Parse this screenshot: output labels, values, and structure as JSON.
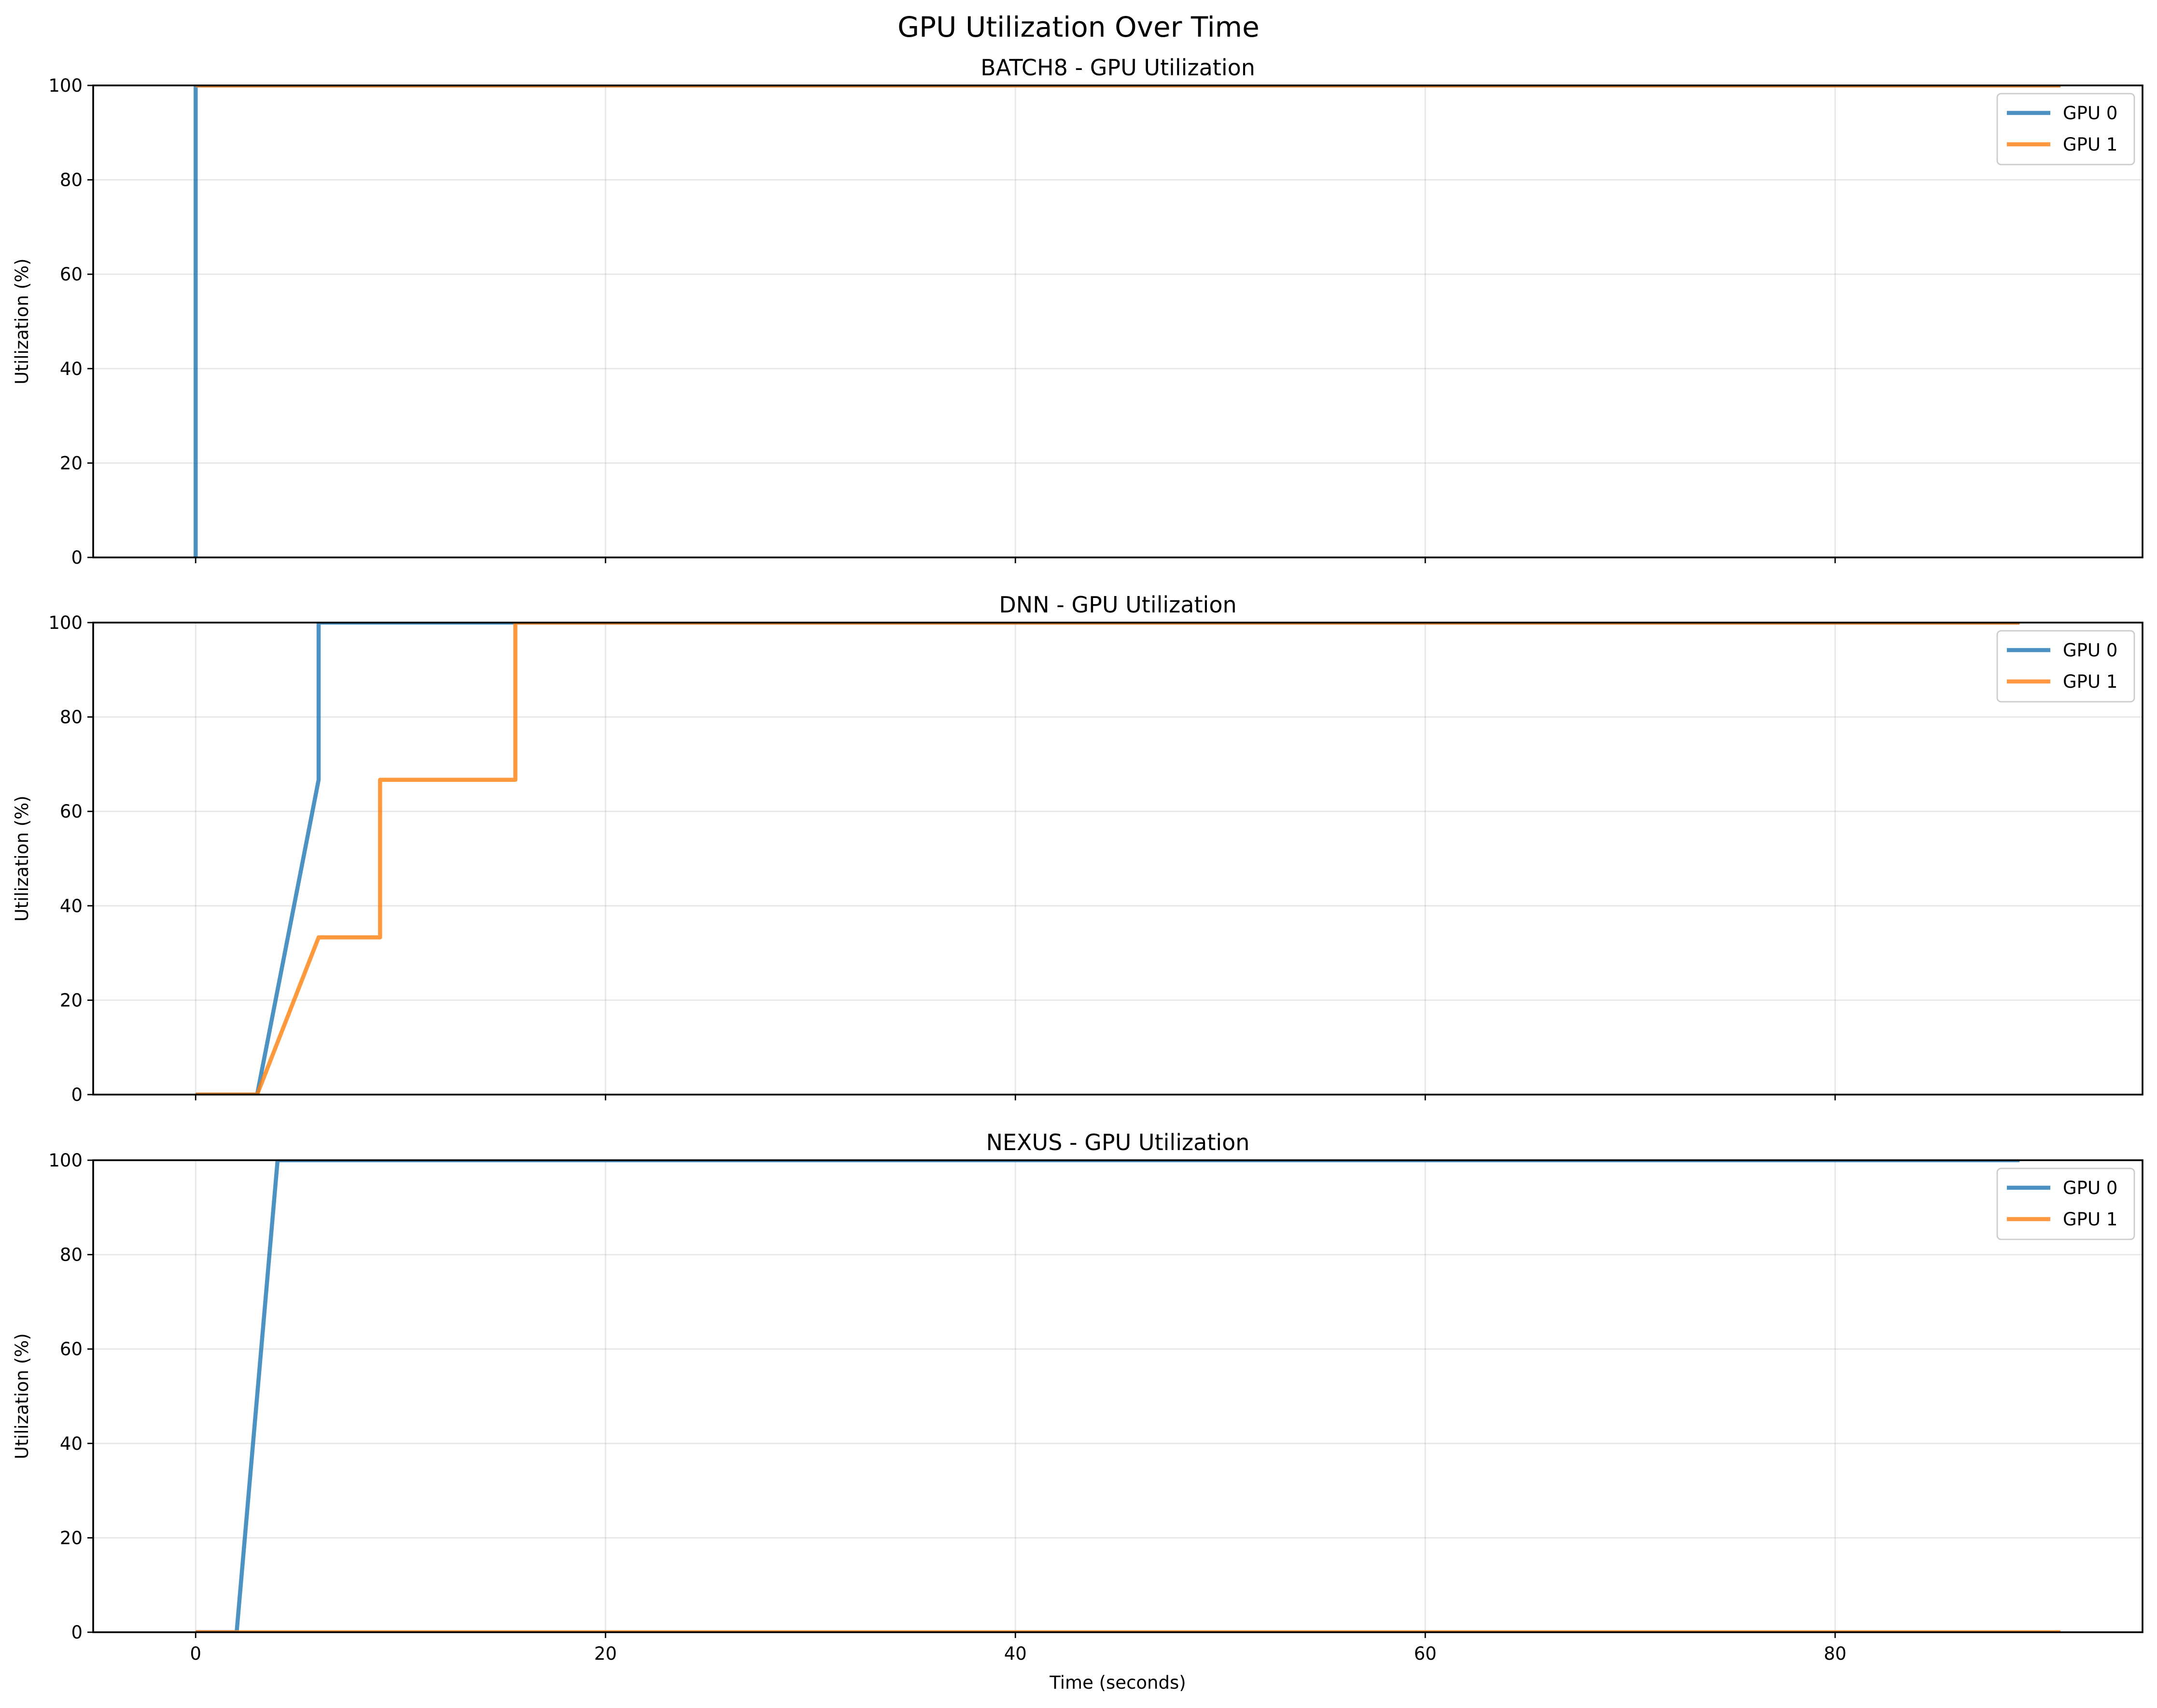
{
  "figure": {
    "suptitle": "GPU Utilization Over Time",
    "colors": {
      "gpu0": "#1f77b4",
      "gpu1": "#ff7f0e"
    }
  },
  "chart_data": [
    {
      "type": "line",
      "title": "BATCH8 - GPU Utilization",
      "xlabel": "",
      "ylabel": "Utilization (%)",
      "xlim": [
        -5,
        95
      ],
      "ylim": [
        0,
        100
      ],
      "xticks": [
        0,
        20,
        40,
        60,
        80
      ],
      "yticks": [
        0,
        20,
        40,
        60,
        80,
        100
      ],
      "show_xtick_labels": false,
      "grid": true,
      "legend": "top-right",
      "series": [
        {
          "name": "GPU 0",
          "color": "#1f77b4",
          "x": [
            0,
            0,
            91
          ],
          "y": [
            0,
            100,
            100
          ]
        },
        {
          "name": "GPU 1",
          "color": "#ff7f0e",
          "x": [
            0,
            91
          ],
          "y": [
            100,
            100
          ]
        }
      ]
    },
    {
      "type": "line",
      "title": "DNN - GPU Utilization",
      "xlabel": "",
      "ylabel": "Utilization (%)",
      "xlim": [
        -5,
        95
      ],
      "ylim": [
        0,
        100
      ],
      "xticks": [
        0,
        20,
        40,
        60,
        80
      ],
      "yticks": [
        0,
        20,
        40,
        60,
        80,
        100
      ],
      "show_xtick_labels": false,
      "grid": true,
      "legend": "top-right",
      "series": [
        {
          "name": "GPU 0",
          "color": "#1f77b4",
          "x": [
            0,
            3,
            6,
            6,
            89
          ],
          "y": [
            0,
            0,
            66.7,
            100,
            100
          ]
        },
        {
          "name": "GPU 1",
          "color": "#ff7f0e",
          "x": [
            0,
            3,
            6,
            9,
            9,
            15.6,
            15.6,
            89
          ],
          "y": [
            0,
            0,
            33.3,
            33.3,
            66.7,
            66.7,
            100,
            100
          ]
        }
      ]
    },
    {
      "type": "line",
      "title": "NEXUS - GPU Utilization",
      "xlabel": "Time (seconds)",
      "ylabel": "Utilization (%)",
      "xlim": [
        -5,
        95
      ],
      "ylim": [
        0,
        100
      ],
      "xticks": [
        0,
        20,
        40,
        60,
        80
      ],
      "yticks": [
        0,
        20,
        40,
        60,
        80,
        100
      ],
      "show_xtick_labels": true,
      "grid": true,
      "legend": "top-right",
      "series": [
        {
          "name": "GPU 0",
          "color": "#1f77b4",
          "x": [
            0,
            2,
            4,
            89
          ],
          "y": [
            0,
            0,
            100,
            100
          ]
        },
        {
          "name": "GPU 1",
          "color": "#ff7f0e",
          "x": [
            0,
            91
          ],
          "y": [
            0,
            0
          ]
        }
      ]
    }
  ]
}
